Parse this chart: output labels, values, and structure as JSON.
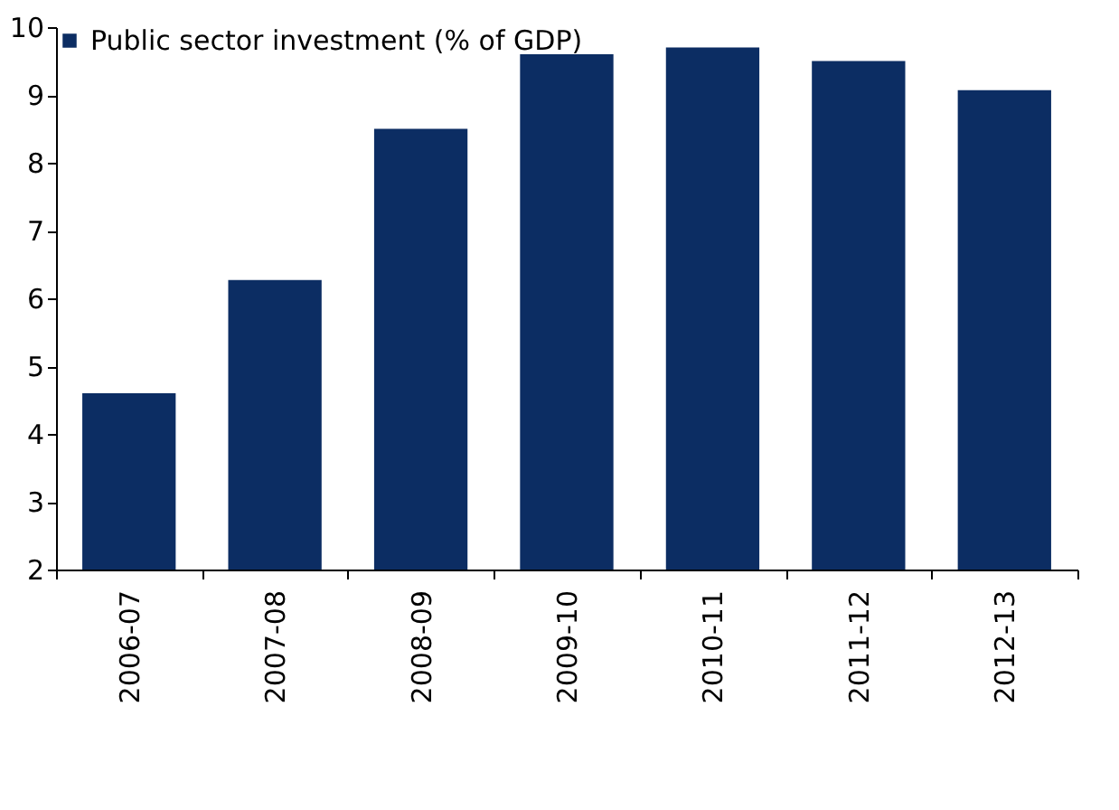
{
  "chart_data": {
    "type": "bar",
    "categories": [
      "2006-07",
      "2007-08",
      "2008-09",
      "2009-10",
      "2010-11",
      "2011-12",
      "2012-13"
    ],
    "series": [
      {
        "name": "Public sector investment (% of GDP)",
        "color": "#0c2d63",
        "values": [
          4.6,
          6.27,
          8.5,
          9.6,
          9.7,
          9.5,
          9.07
        ]
      }
    ],
    "ylim": [
      2,
      10
    ],
    "yticks": [
      2,
      3,
      4,
      5,
      6,
      7,
      8,
      9,
      10
    ],
    "grid": false,
    "legend": "top left"
  }
}
